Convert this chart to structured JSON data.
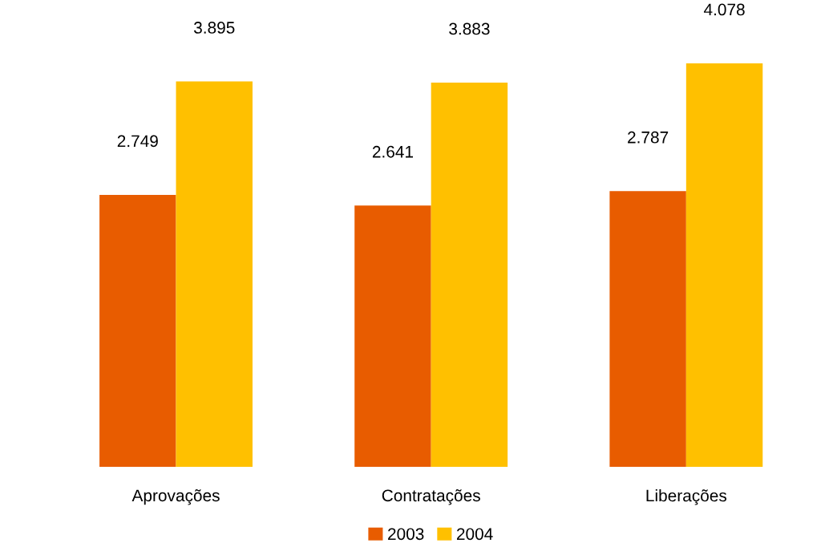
{
  "chart_data": {
    "type": "bar",
    "categories": [
      "Aprovações",
      "Contratações",
      "Liberações"
    ],
    "series": [
      {
        "name": "2003",
        "color": "#e85c00",
        "values": [
          2.749,
          2.641,
          2.787
        ]
      },
      {
        "name": "2004",
        "color": "#ffc000",
        "values": [
          3.895,
          3.883,
          4.078
        ]
      }
    ],
    "data_labels": true,
    "legend": "bottom",
    "grid": false
  }
}
